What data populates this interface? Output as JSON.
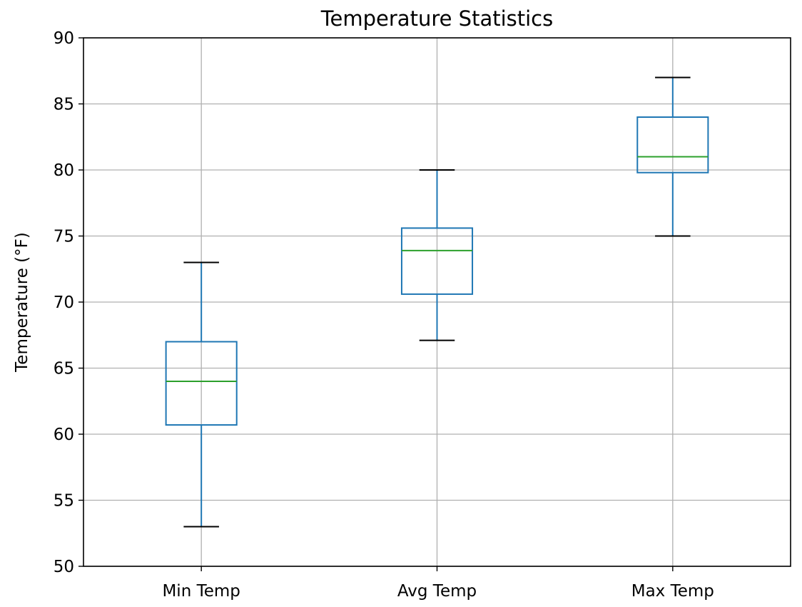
{
  "chart_data": {
    "type": "box",
    "title": "Temperature Statistics",
    "xlabel": "",
    "ylabel": "Temperature (°F)",
    "ylim": [
      50,
      90
    ],
    "yticks": [
      50,
      55,
      60,
      65,
      70,
      75,
      80,
      85,
      90
    ],
    "grid": true,
    "categories": [
      "Min Temp",
      "Avg Temp",
      "Max Temp"
    ],
    "boxes": [
      {
        "category": "Min Temp",
        "whisker_low": 53,
        "q1": 60.7,
        "median": 64,
        "q3": 67,
        "whisker_high": 73
      },
      {
        "category": "Avg Temp",
        "whisker_low": 67.1,
        "q1": 70.6,
        "median": 73.9,
        "q3": 75.6,
        "whisker_high": 80
      },
      {
        "category": "Max Temp",
        "whisker_low": 75,
        "q1": 79.8,
        "median": 81,
        "q3": 84,
        "whisker_high": 87
      }
    ],
    "colors": {
      "box": "#1f77b4",
      "median": "#2ca02c",
      "whisker": "#1f77b4",
      "cap": "#000000",
      "grid": "#b0b0b0"
    }
  }
}
